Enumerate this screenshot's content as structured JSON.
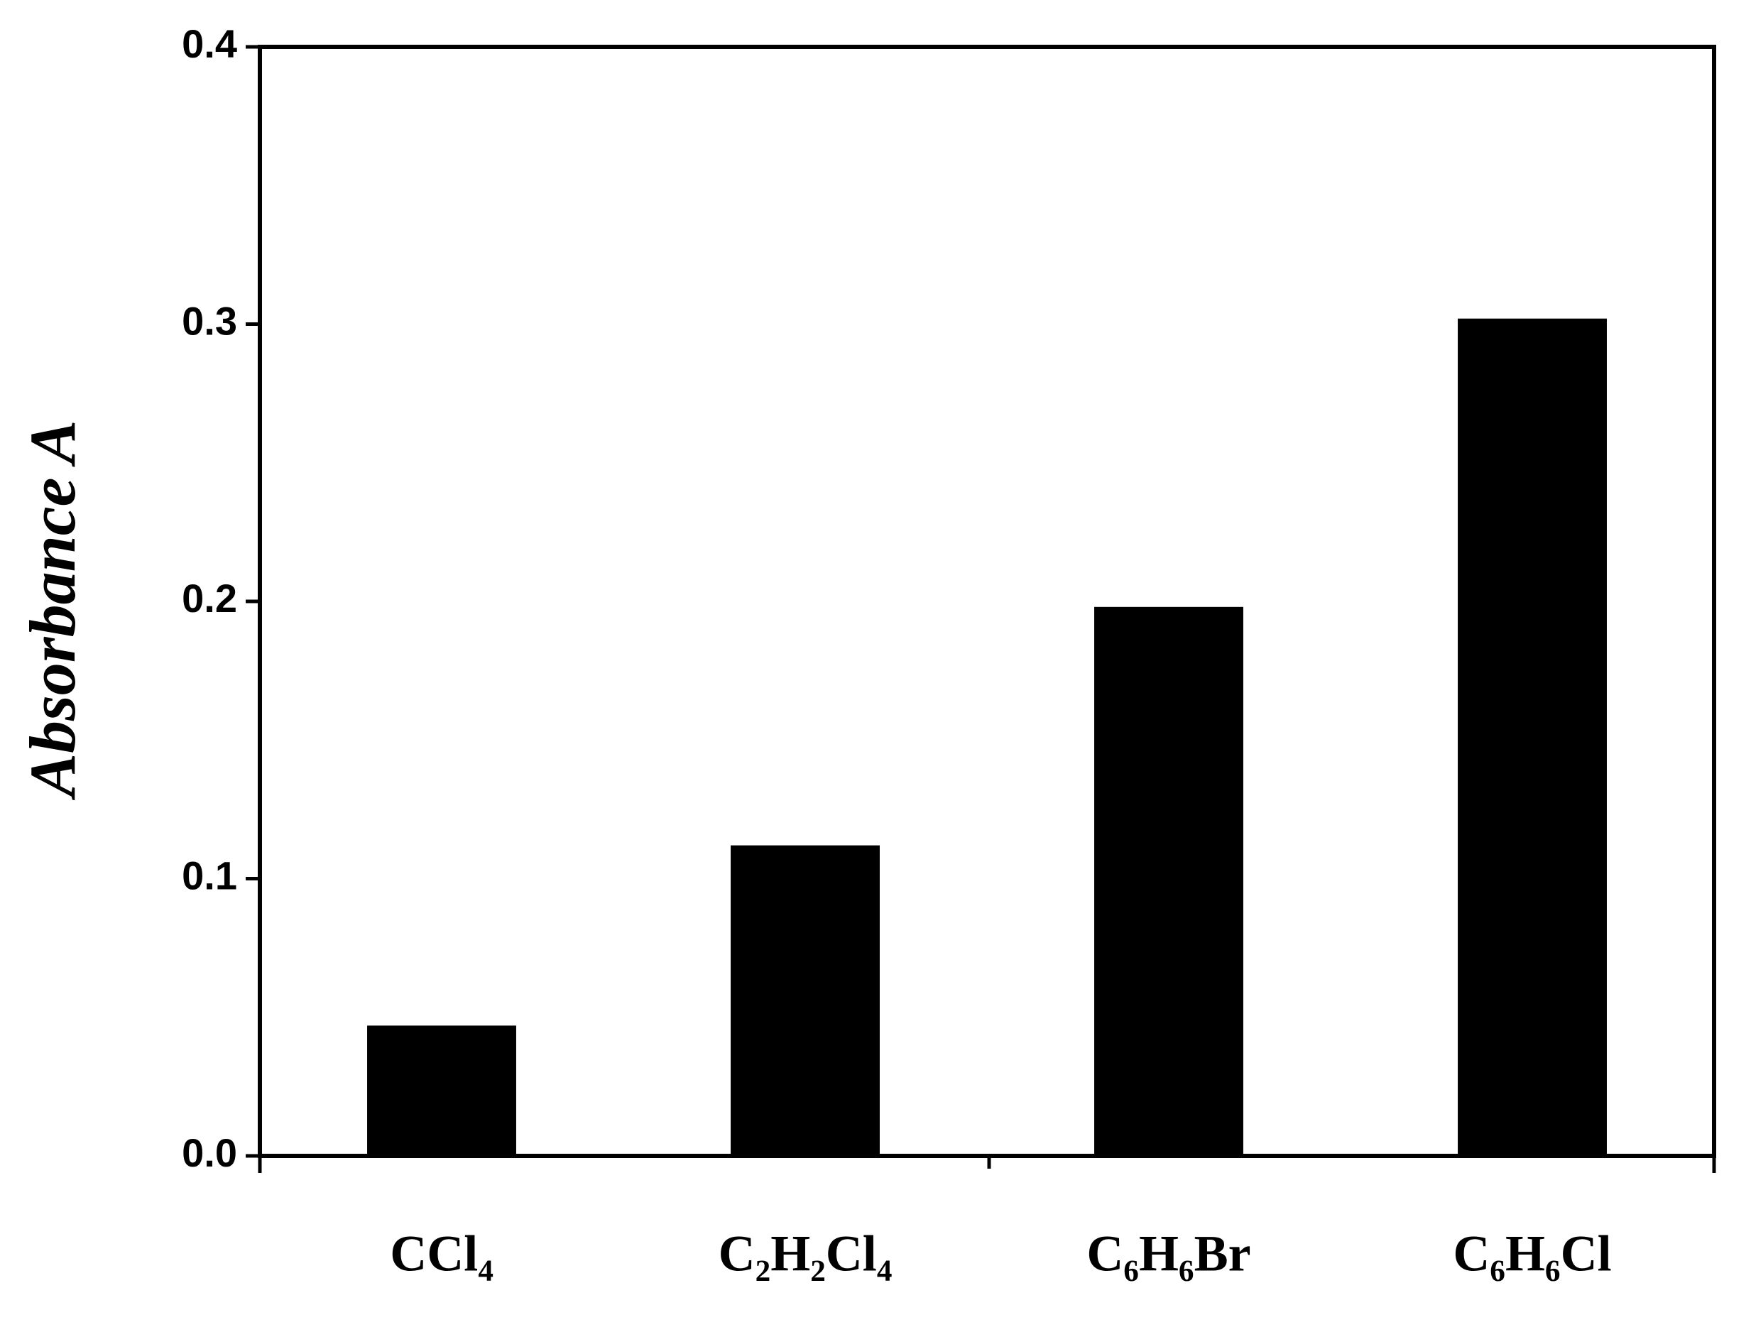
{
  "chart_data": {
    "type": "bar",
    "y_label": "Absorbance A",
    "categories": [
      "CCl₄",
      "C₂H₂Cl₄",
      "C₆H₆Br",
      "C₆H₆Cl"
    ],
    "values": [
      0.047,
      0.112,
      0.198,
      0.302
    ],
    "color": "#000000",
    "ylim": [
      0,
      0.4
    ],
    "yticks": [
      {
        "value": 0,
        "label": "0.0"
      },
      0.1,
      0.2,
      0.3,
      0.4
    ],
    "grid": false
  }
}
